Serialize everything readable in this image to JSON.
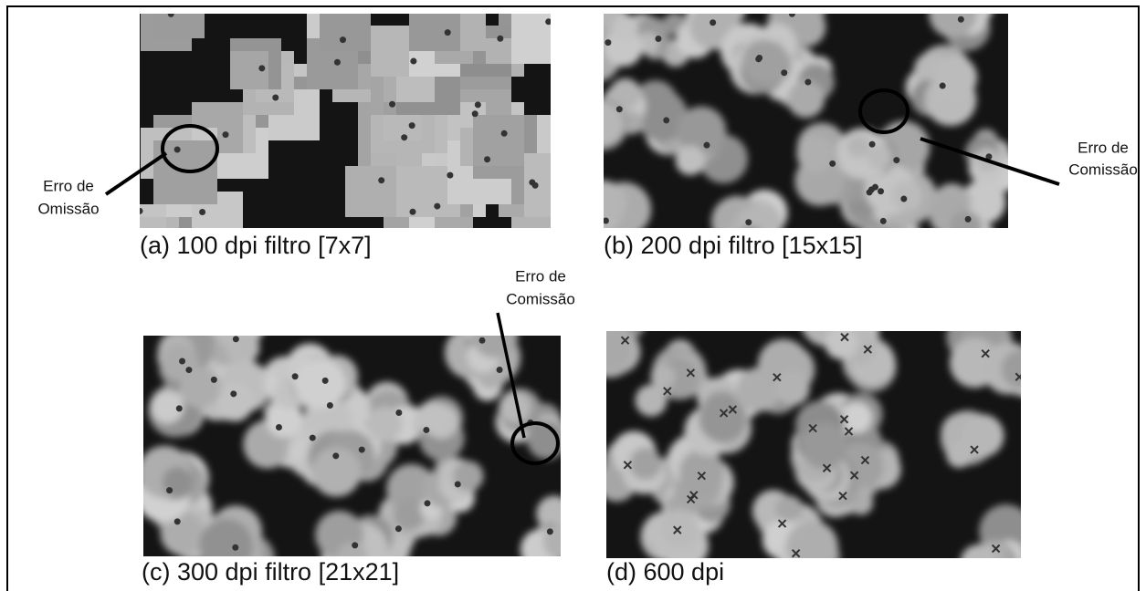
{
  "figure": {
    "panels": [
      {
        "caption": "(a) 100 dpi filtro [7x7]"
      },
      {
        "caption": "(b) 200 dpi filtro [15x15]"
      },
      {
        "caption": "(c) 300 dpi filtro [21x21]"
      },
      {
        "caption": "(d) 600 dpi"
      }
    ],
    "annotations": [
      {
        "lines": [
          "Erro de",
          "Omissão"
        ]
      },
      {
        "lines": [
          "Erro de",
          "Comissão"
        ]
      },
      {
        "lines": [
          "Erro de",
          "Comissão"
        ]
      }
    ]
  }
}
